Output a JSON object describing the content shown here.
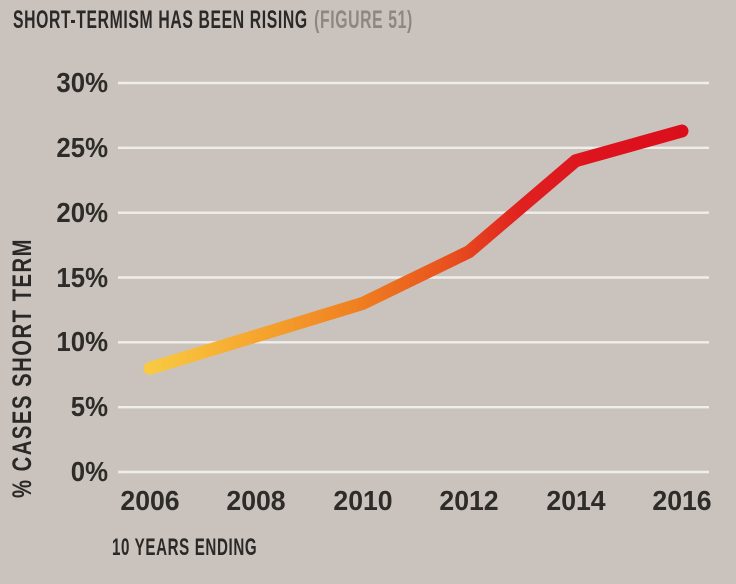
{
  "title": {
    "main": "SHORT-TERMISM HAS BEEN RISING",
    "figure": "(FIGURE 51)"
  },
  "chart_data": {
    "type": "line",
    "x": [
      2006,
      2008,
      2010,
      2012,
      2014,
      2016
    ],
    "values": [
      8.0,
      10.5,
      13.0,
      17.0,
      24.0,
      26.3
    ],
    "series_name": "% cases short term",
    "title": "SHORT-TERMISM HAS BEEN RISING (FIGURE 51)",
    "xlabel": "10 YEARS ENDING",
    "ylabel": "% CASES SHORT TERM",
    "ylim": [
      0,
      30
    ],
    "yticks": [
      0,
      5,
      10,
      15,
      20,
      25,
      30
    ],
    "ytick_suffix": "%",
    "xticks": [
      2006,
      2008,
      2010,
      2012,
      2014,
      2016
    ],
    "grid": true,
    "legend": false,
    "line_width": 13,
    "line_gradient_colors": [
      "#F9C942",
      "#F6A930",
      "#EF7D20",
      "#E8511E",
      "#E02020",
      "#DD131E",
      "#DB0F1B"
    ],
    "line_gradient_offsets": [
      0,
      0.18,
      0.4,
      0.56,
      0.7,
      0.84,
      1
    ]
  },
  "colors": {
    "background": "#CAC3BD",
    "gridline": "#F0EEEA",
    "title_text": "#2B2927",
    "figure_label": "#8C8781",
    "tick_text": "#2E2C29"
  }
}
